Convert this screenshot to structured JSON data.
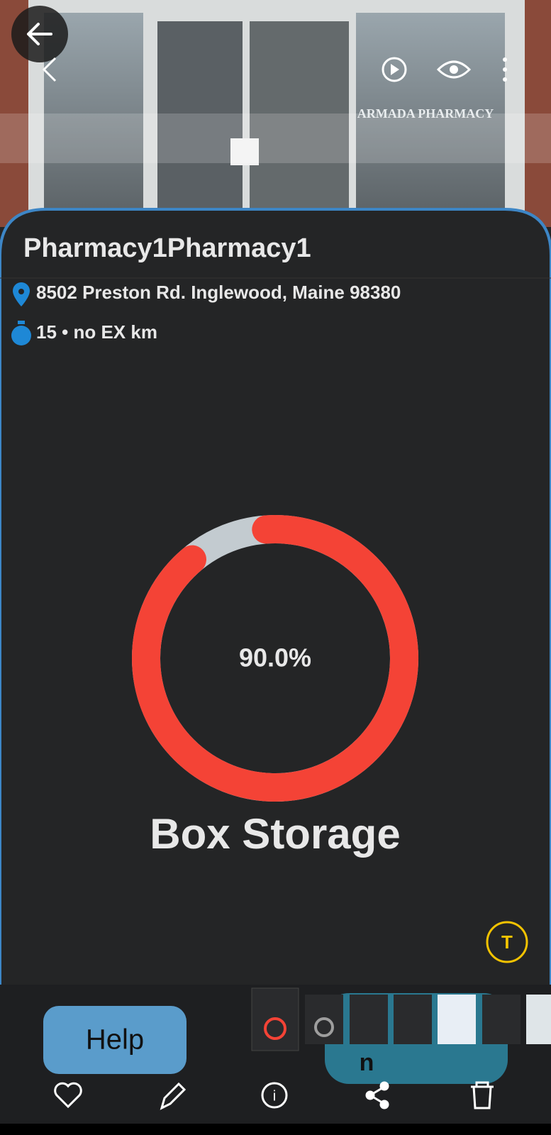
{
  "photo": {
    "sign_text": "ARMADA PHARMACY"
  },
  "store": {
    "name": "Pharmacy1Pharmacy1",
    "address": "8502 Preston Rd. Inglewood, Maine 98380",
    "distance": "15 • no EX km"
  },
  "storage": {
    "value": 90,
    "value_label": "90.0%",
    "title": "Box Storage"
  },
  "bottom": {
    "help_button": "Help",
    "overlay_text": "n"
  }
}
